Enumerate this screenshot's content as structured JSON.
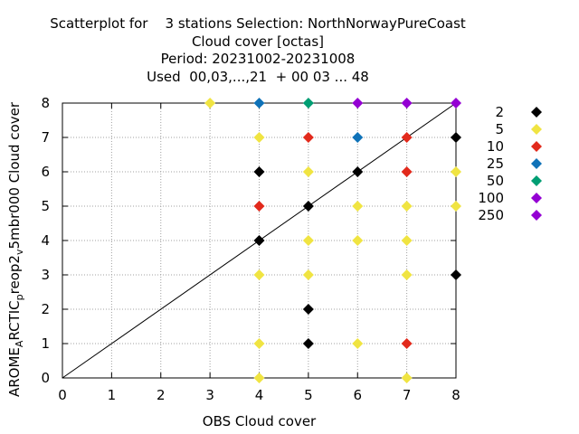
{
  "chart_data": {
    "type": "scatter",
    "title_lines": [
      "Scatterplot for    3 stations Selection: NorthNorwayPureCoast",
      "Cloud cover [octas]",
      "Period: 20231002-20231008",
      "Used  00,03,...,21  + 00 03 ... 48"
    ],
    "xlabel": "OBS Cloud cover",
    "ylabel": {
      "segments": [
        {
          "text": "AROME",
          "sub": false
        },
        {
          "text": "A",
          "sub": true
        },
        {
          "text": "RCTIC",
          "sub": false
        },
        {
          "text": "p",
          "sub": true
        },
        {
          "text": "reop2",
          "sub": false
        },
        {
          "text": "v",
          "sub": true
        },
        {
          "text": "5mbr000 Cloud cover",
          "sub": false
        }
      ]
    },
    "xlim": [
      0,
      8
    ],
    "ylim": [
      0,
      8
    ],
    "xticks": [
      "0",
      "1",
      "2",
      "3",
      "4",
      "5",
      "6",
      "7",
      "8"
    ],
    "yticks": [
      "0",
      "1",
      "2",
      "3",
      "4",
      "5",
      "6",
      "7",
      "8"
    ],
    "grid": true,
    "diagonal": true,
    "legend_placement": "right",
    "series": [
      {
        "name": "2",
        "color": "#000000",
        "points": [
          [
            4,
            6
          ],
          [
            4,
            4
          ],
          [
            5,
            5
          ],
          [
            5,
            2
          ],
          [
            5,
            1
          ],
          [
            6,
            6
          ],
          [
            8,
            7
          ],
          [
            8,
            3
          ]
        ]
      },
      {
        "name": "5",
        "color": "#f0e442",
        "points": [
          [
            3,
            8
          ],
          [
            4,
            7
          ],
          [
            4,
            3
          ],
          [
            4,
            1
          ],
          [
            4,
            0
          ],
          [
            5,
            6
          ],
          [
            5,
            4
          ],
          [
            5,
            3
          ],
          [
            6,
            5
          ],
          [
            6,
            4
          ],
          [
            6,
            1
          ],
          [
            7,
            5
          ],
          [
            7,
            4
          ],
          [
            7,
            3
          ],
          [
            7,
            0
          ],
          [
            8,
            6
          ],
          [
            8,
            5
          ]
        ]
      },
      {
        "name": "10",
        "color": "#e22a1c",
        "points": [
          [
            4,
            5
          ],
          [
            5,
            7
          ],
          [
            7,
            7
          ],
          [
            7,
            6
          ],
          [
            7,
            1
          ]
        ]
      },
      {
        "name": "25",
        "color": "#0f72b8",
        "points": [
          [
            4,
            8
          ],
          [
            6,
            7
          ]
        ]
      },
      {
        "name": "50",
        "color": "#009e73",
        "points": [
          [
            5,
            8
          ]
        ]
      },
      {
        "name": "100",
        "color": "#9400d3",
        "points": [
          [
            6,
            8
          ],
          [
            7,
            8
          ],
          [
            8,
            8
          ]
        ]
      },
      {
        "name": "250",
        "color": "#9400d3",
        "points": []
      }
    ]
  }
}
